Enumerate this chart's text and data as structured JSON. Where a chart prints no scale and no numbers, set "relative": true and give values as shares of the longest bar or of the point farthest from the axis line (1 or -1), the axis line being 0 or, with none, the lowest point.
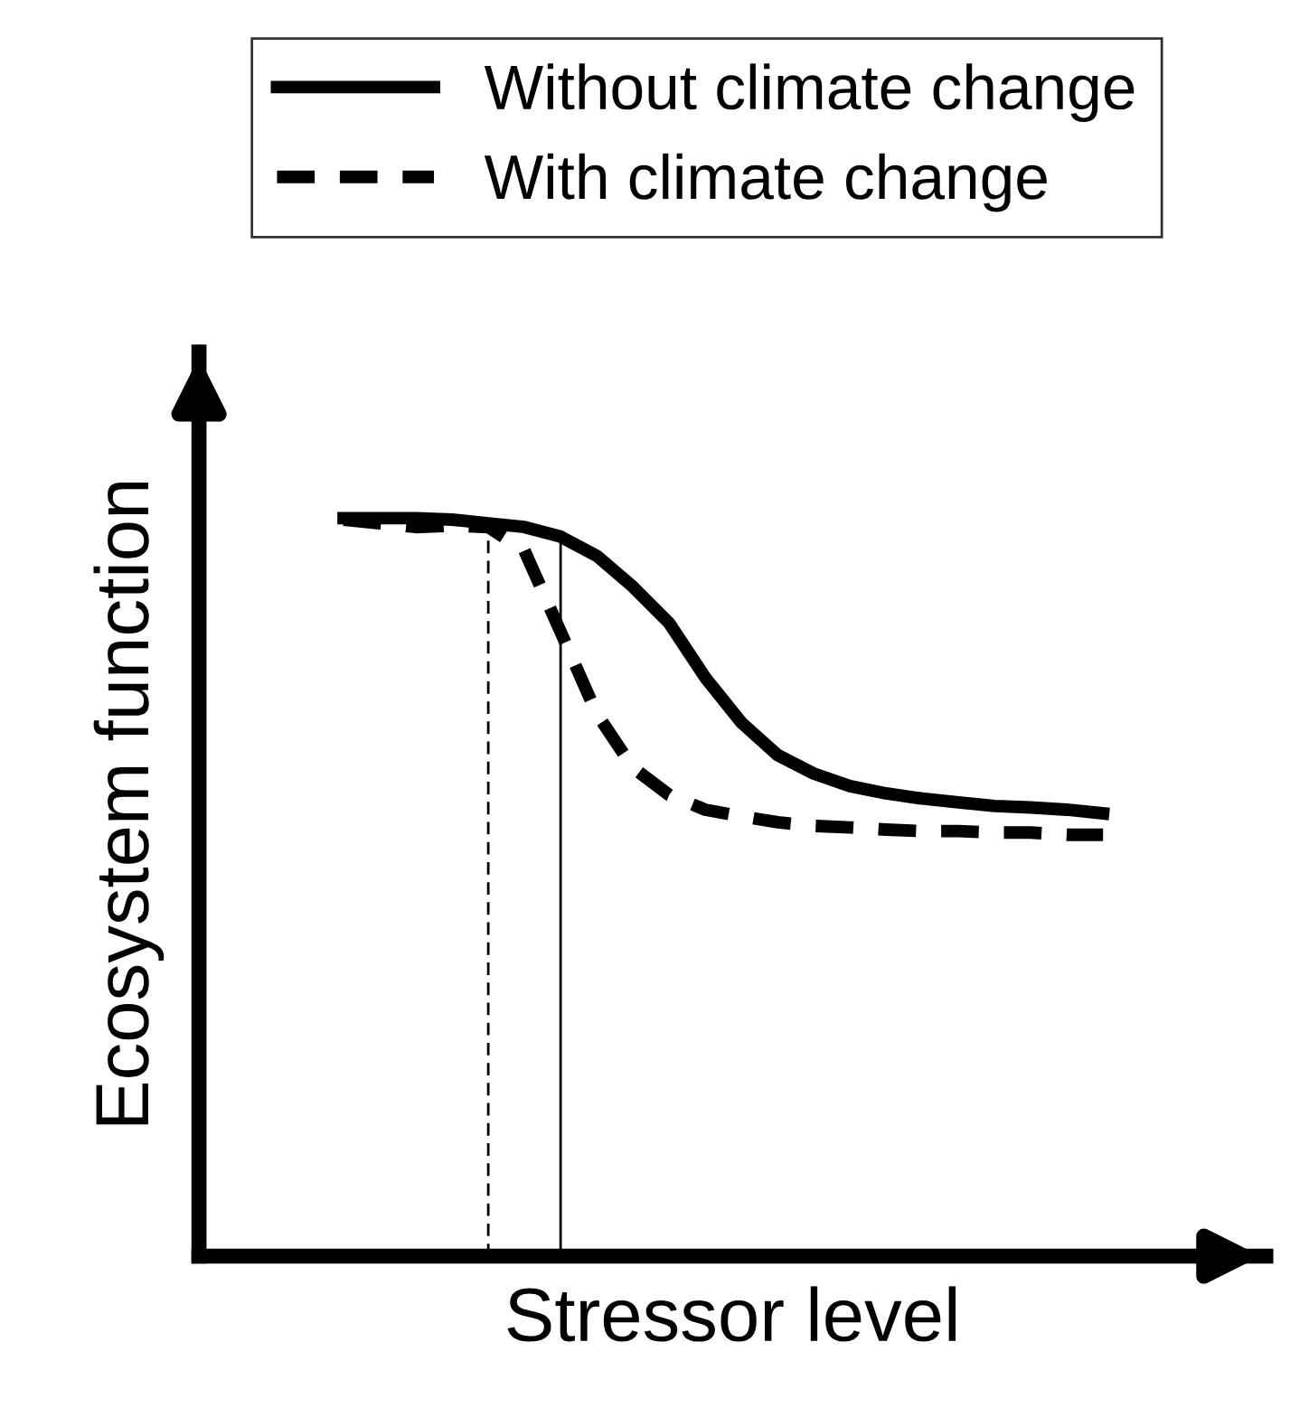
{
  "chart_data": {
    "type": "line",
    "relative": true,
    "xlabel": "Stressor level",
    "ylabel": "Ecosystem function",
    "categories": [
      null,
      null,
      null,
      null,
      null,
      null,
      null,
      null,
      null,
      null,
      null,
      null,
      null,
      null,
      null,
      null,
      null,
      null,
      null,
      null,
      null,
      null
    ],
    "series": [
      {
        "name": "Without climate change",
        "color": "#000000",
        "line_style": "solid",
        "values": [
          1.0,
          1.0,
          1.0,
          0.998,
          0.993,
          0.988,
          0.975,
          0.949,
          0.907,
          0.858,
          0.784,
          0.723,
          0.679,
          0.654,
          0.637,
          0.627,
          0.62,
          0.615,
          0.61,
          0.608,
          0.605,
          0.6
        ]
      },
      {
        "name": "With climate change",
        "color": "#000000",
        "line_style": "dashed",
        "values": [
          0.998,
          0.993,
          0.988,
          0.99,
          0.988,
          0.956,
          0.846,
          0.735,
          0.662,
          0.625,
          0.605,
          0.596,
          0.588,
          0.583,
          0.581,
          0.578,
          0.576,
          0.576,
          0.574,
          0.574,
          0.571,
          0.571
        ]
      }
    ],
    "legend": "top"
  }
}
